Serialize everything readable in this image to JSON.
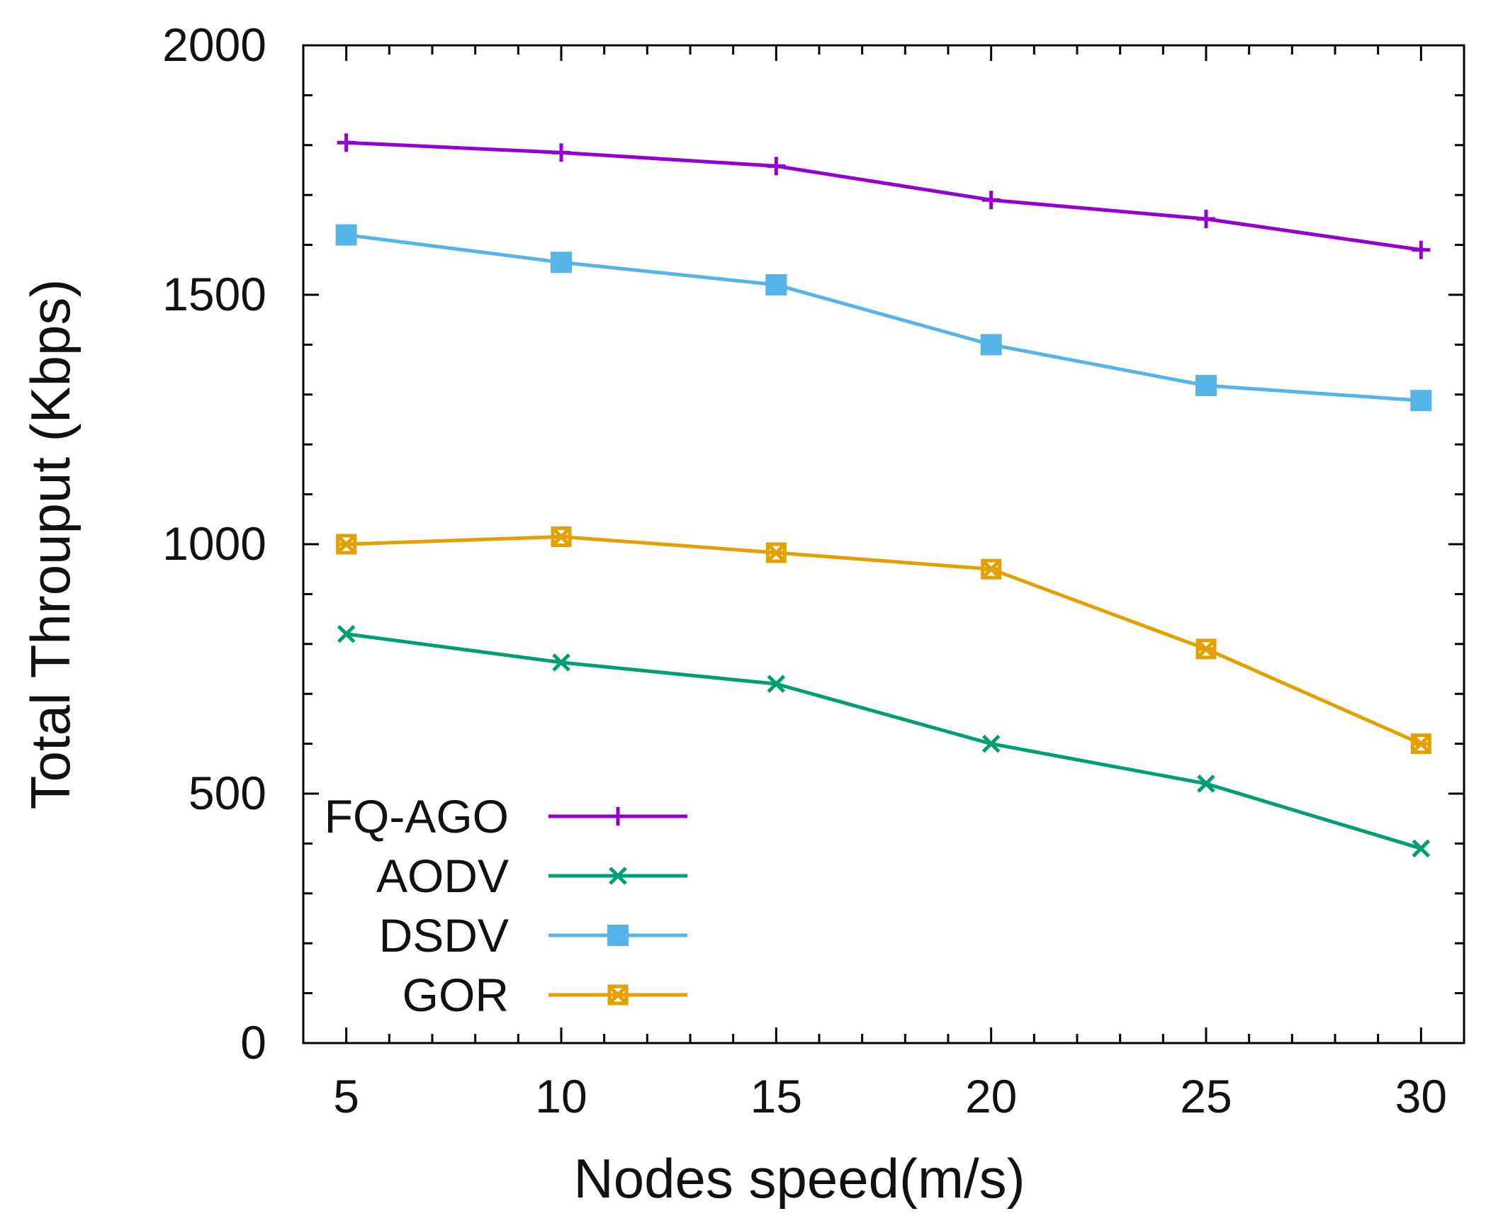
{
  "chart_data": {
    "type": "line",
    "title": "",
    "xlabel": "Nodes speed(m/s)",
    "ylabel": "Total Throuput (Kbps)",
    "x": [
      5,
      10,
      15,
      20,
      25,
      30
    ],
    "xlim": [
      4,
      31
    ],
    "ylim": [
      0,
      2000
    ],
    "xticks": [
      5,
      10,
      15,
      20,
      25,
      30
    ],
    "yticks": [
      0,
      500,
      1000,
      1500,
      2000
    ],
    "grid": false,
    "legend_position": "bottom-left",
    "series": [
      {
        "name": "FQ-AGO",
        "color": "#9400d3",
        "marker": "plus",
        "values": [
          1805,
          1785,
          1758,
          1690,
          1652,
          1590
        ]
      },
      {
        "name": "AODV",
        "color": "#009e73",
        "marker": "cross",
        "values": [
          820,
          763,
          720,
          600,
          520,
          390
        ]
      },
      {
        "name": "DSDV",
        "color": "#56b4e9",
        "marker": "square",
        "values": [
          1620,
          1565,
          1520,
          1400,
          1318,
          1288
        ]
      },
      {
        "name": "GOR",
        "color": "#e69f00",
        "marker": "star",
        "values": [
          1000,
          1015,
          983,
          950,
          790,
          600
        ]
      }
    ]
  }
}
